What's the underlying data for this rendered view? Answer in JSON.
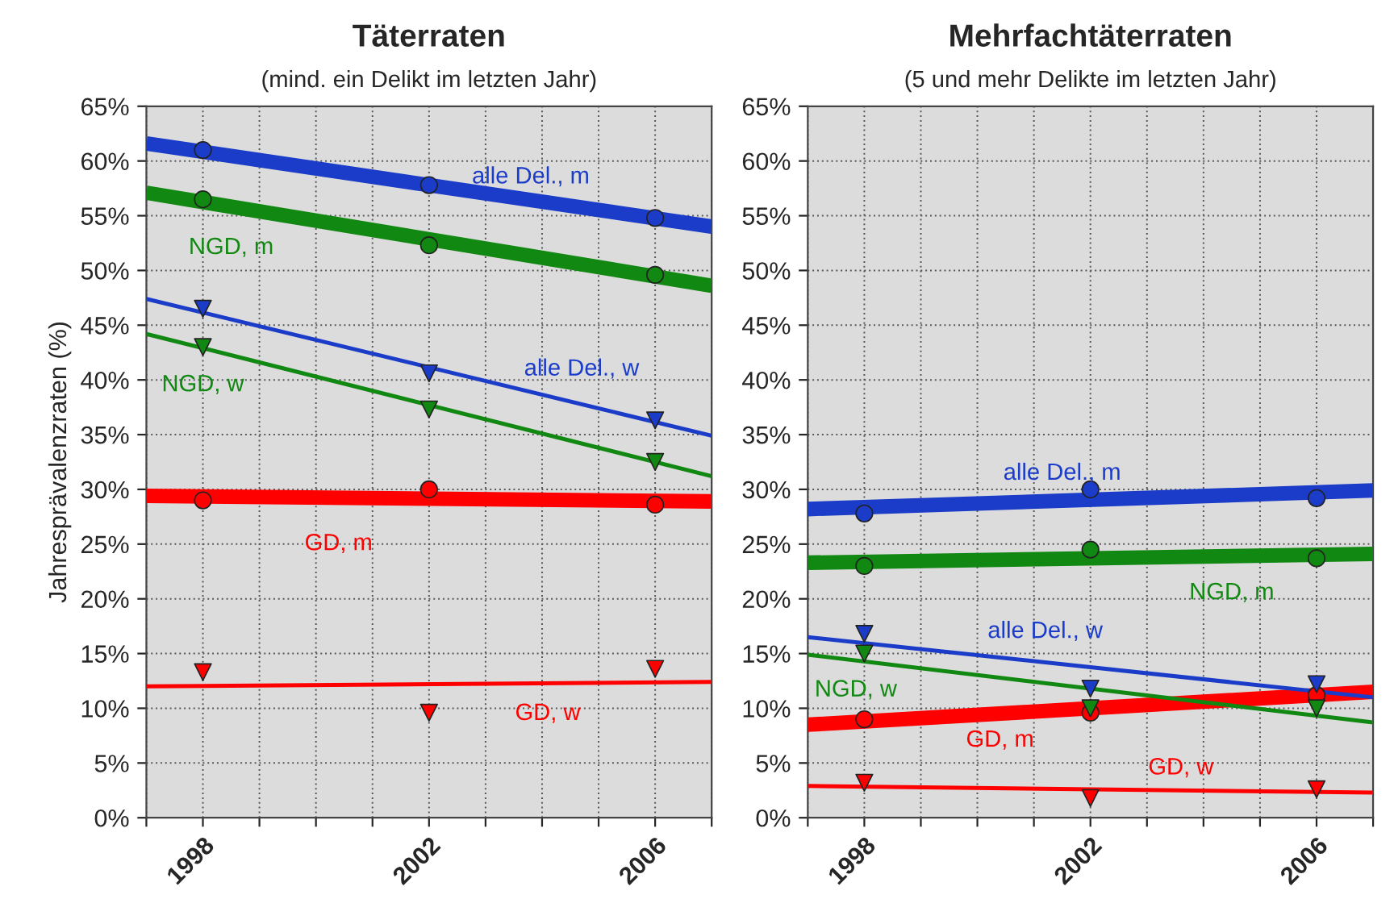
{
  "chart_data": [
    {
      "type": "line",
      "title": "Täterraten",
      "subtitle": "(mind. ein Delikt im letzten Jahr)",
      "ylabel": "Jahresprävalenzraten (%)",
      "xlim": [
        1997,
        2007
      ],
      "xticks": [
        {
          "value": 1997,
          "label": null
        },
        {
          "value": 1998,
          "label": "1998"
        },
        {
          "value": 1999,
          "label": null
        },
        {
          "value": 2000,
          "label": null
        },
        {
          "value": 2001,
          "label": null
        },
        {
          "value": 2002,
          "label": "2002"
        },
        {
          "value": 2003,
          "label": null
        },
        {
          "value": 2004,
          "label": null
        },
        {
          "value": 2005,
          "label": null
        },
        {
          "value": 2006,
          "label": "2006"
        },
        {
          "value": 2007,
          "label": null
        }
      ],
      "ylim": [
        0,
        65
      ],
      "yticks": [
        {
          "value": 0,
          "label": "0%"
        },
        {
          "value": 5,
          "label": "5%"
        },
        {
          "value": 10,
          "label": "10%"
        },
        {
          "value": 15,
          "label": "15%"
        },
        {
          "value": 20,
          "label": "20%"
        },
        {
          "value": 25,
          "label": "25%"
        },
        {
          "value": 30,
          "label": "30%"
        },
        {
          "value": 35,
          "label": "35%"
        },
        {
          "value": 40,
          "label": "40%"
        },
        {
          "value": 45,
          "label": "45%"
        },
        {
          "value": 50,
          "label": "50%"
        },
        {
          "value": 55,
          "label": "55%"
        },
        {
          "value": 60,
          "label": "60%"
        },
        {
          "value": 65,
          "label": "65%"
        }
      ],
      "grid": true,
      "series": [
        {
          "type": "line",
          "name": "alle Del., m",
          "color": "#1a3cc8",
          "x": [
            1997,
            2007
          ],
          "values": [
            61.6,
            54.0
          ]
        },
        {
          "type": "scatter",
          "marker": "circle",
          "color": "#1a3cc8",
          "x": [
            1998,
            2002,
            2006
          ],
          "values": [
            61.0,
            57.8,
            54.8
          ]
        },
        {
          "type": "line",
          "name": "alle Del., w",
          "color": "#1a3cc8",
          "x": [
            1997,
            2007
          ],
          "values": [
            47.4,
            34.9
          ]
        },
        {
          "type": "scatter",
          "marker": "triangle",
          "color": "#1a3cc8",
          "x": [
            1998,
            2002,
            2006
          ],
          "values": [
            46.5,
            40.6,
            36.3
          ]
        },
        {
          "type": "line",
          "name": "NGD, m",
          "color": "#118811",
          "x": [
            1997,
            2007
          ],
          "values": [
            57.1,
            48.6
          ]
        },
        {
          "type": "scatter",
          "marker": "circle",
          "color": "#118811",
          "x": [
            1998,
            2002,
            2006
          ],
          "values": [
            56.5,
            52.3,
            49.6
          ]
        },
        {
          "type": "line",
          "name": "NGD, w",
          "color": "#118811",
          "x": [
            1997,
            2007
          ],
          "values": [
            44.2,
            31.2
          ]
        },
        {
          "type": "scatter",
          "marker": "triangle",
          "color": "#118811",
          "x": [
            1998,
            2002,
            2006
          ],
          "values": [
            43.0,
            37.3,
            32.5
          ]
        },
        {
          "type": "line",
          "name": "GD, m",
          "color": "#ff0000",
          "x": [
            1997,
            2007
          ],
          "values": [
            29.4,
            28.9
          ]
        },
        {
          "type": "scatter",
          "marker": "circle",
          "color": "#ff0000",
          "x": [
            1998,
            2002,
            2006
          ],
          "values": [
            29.0,
            30.0,
            28.6
          ]
        },
        {
          "type": "line",
          "name": "GD, w",
          "color": "#ff0000",
          "x": [
            1997,
            2007
          ],
          "values": [
            12.0,
            12.4
          ]
        },
        {
          "type": "scatter",
          "marker": "triangle",
          "color": "#ff0000",
          "x": [
            1998,
            2002,
            2006
          ],
          "values": [
            13.3,
            9.6,
            13.6
          ]
        }
      ]
    },
    {
      "type": "line",
      "title": "Mehrfachtäterraten",
      "subtitle": "(5 und mehr Delikte im letzten Jahr)",
      "xlim": [
        1997,
        2007
      ],
      "xticks": [
        {
          "value": 1997,
          "label": null
        },
        {
          "value": 1998,
          "label": "1998"
        },
        {
          "value": 1999,
          "label": null
        },
        {
          "value": 2000,
          "label": null
        },
        {
          "value": 2001,
          "label": null
        },
        {
          "value": 2002,
          "label": "2002"
        },
        {
          "value": 2003,
          "label": null
        },
        {
          "value": 2004,
          "label": null
        },
        {
          "value": 2005,
          "label": null
        },
        {
          "value": 2006,
          "label": "2006"
        },
        {
          "value": 2007,
          "label": null
        }
      ],
      "ylim": [
        0,
        65
      ],
      "yticks": [
        {
          "value": 0,
          "label": "0%"
        },
        {
          "value": 5,
          "label": "5%"
        },
        {
          "value": 10,
          "label": "10%"
        },
        {
          "value": 15,
          "label": "15%"
        },
        {
          "value": 20,
          "label": "20%"
        },
        {
          "value": 25,
          "label": "25%"
        },
        {
          "value": 30,
          "label": "30%"
        },
        {
          "value": 35,
          "label": "35%"
        },
        {
          "value": 40,
          "label": "40%"
        },
        {
          "value": 45,
          "label": "45%"
        },
        {
          "value": 50,
          "label": "50%"
        },
        {
          "value": 55,
          "label": "55%"
        },
        {
          "value": 60,
          "label": "60%"
        },
        {
          "value": 65,
          "label": "65%"
        }
      ],
      "grid": true,
      "series": [
        {
          "type": "line",
          "name": "alle Del., m",
          "color": "#1a3cc8",
          "x": [
            1997,
            2007
          ],
          "values": [
            28.2,
            29.9
          ]
        },
        {
          "type": "scatter",
          "marker": "circle",
          "color": "#1a3cc8",
          "x": [
            1998,
            2002,
            2006
          ],
          "values": [
            27.8,
            30.0,
            29.2
          ]
        },
        {
          "type": "line",
          "name": "alle Del., w",
          "color": "#1a3cc8",
          "x": [
            1997,
            2007
          ],
          "values": [
            16.5,
            11.0
          ]
        },
        {
          "type": "scatter",
          "marker": "triangle",
          "color": "#1a3cc8",
          "x": [
            1998,
            2002,
            2006
          ],
          "values": [
            16.8,
            11.8,
            12.2
          ]
        },
        {
          "type": "line",
          "name": "NGD, m",
          "color": "#118811",
          "x": [
            1997,
            2007
          ],
          "values": [
            23.3,
            24.1
          ]
        },
        {
          "type": "scatter",
          "marker": "circle",
          "color": "#118811",
          "x": [
            1998,
            2002,
            2006
          ],
          "values": [
            23.0,
            24.5,
            23.7
          ]
        },
        {
          "type": "line",
          "name": "NGD, w",
          "color": "#118811",
          "x": [
            1997,
            2007
          ],
          "values": [
            14.9,
            8.7
          ]
        },
        {
          "type": "scatter",
          "marker": "triangle",
          "color": "#118811",
          "x": [
            1998,
            2002,
            2006
          ],
          "values": [
            15.0,
            10.0,
            10.0
          ]
        },
        {
          "type": "line",
          "name": "GD, m",
          "color": "#ff0000",
          "x": [
            1997,
            2007
          ],
          "values": [
            8.5,
            11.5
          ]
        },
        {
          "type": "scatter",
          "marker": "circle",
          "color": "#ff0000",
          "x": [
            1998,
            2002,
            2006
          ],
          "values": [
            9.0,
            9.6,
            11.2
          ]
        },
        {
          "type": "line",
          "name": "GD, w",
          "color": "#ff0000",
          "x": [
            1997,
            2007
          ],
          "values": [
            2.9,
            2.3
          ]
        },
        {
          "type": "scatter",
          "marker": "triangle",
          "color": "#ff0000",
          "x": [
            1998,
            2002,
            2006
          ],
          "values": [
            3.2,
            1.8,
            2.6
          ]
        }
      ]
    }
  ]
}
